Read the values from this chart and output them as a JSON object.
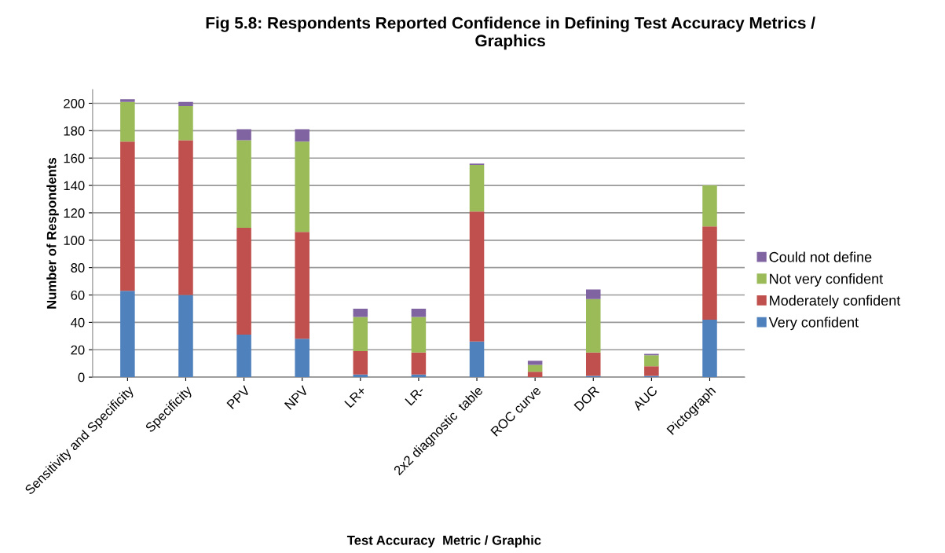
{
  "chart_data": {
    "type": "bar",
    "stacked": true,
    "title": "Fig 5.8: Respondents Reported Confidence in Defining Test Accuracy Metrics /\nGraphics",
    "xlabel": "Test Accuracy  Metric / Graphic",
    "ylabel": "Number of Respondents",
    "categories": [
      "Sensitivity and Specificity",
      "Specificity",
      "PPV",
      "NPV",
      "LR+",
      "LR-",
      "2x2 diagnostic  table",
      "ROC curve",
      "DOR",
      "AUC",
      "Pictograph"
    ],
    "series": [
      {
        "name": "Very confident",
        "color": "#4f81bd",
        "values": [
          63,
          60,
          31,
          28,
          2,
          2,
          26,
          0,
          1,
          1,
          42
        ]
      },
      {
        "name": "Moderately confident",
        "color": "#c0504d",
        "values": [
          109,
          113,
          78,
          78,
          17,
          16,
          95,
          4,
          17,
          7,
          68
        ]
      },
      {
        "name": "Not very confident",
        "color": "#9bbb59",
        "values": [
          29,
          25,
          64,
          66,
          25,
          26,
          34,
          5,
          39,
          8,
          30
        ]
      },
      {
        "name": "Could not define",
        "color": "#8064a2",
        "values": [
          2,
          3,
          8,
          9,
          6,
          6,
          1,
          3,
          7,
          1,
          0
        ]
      }
    ],
    "ylim": [
      0,
      210
    ],
    "yticks": [
      0,
      20,
      40,
      60,
      80,
      100,
      120,
      140,
      160,
      180,
      200
    ],
    "grid": "y",
    "legend": "right"
  }
}
